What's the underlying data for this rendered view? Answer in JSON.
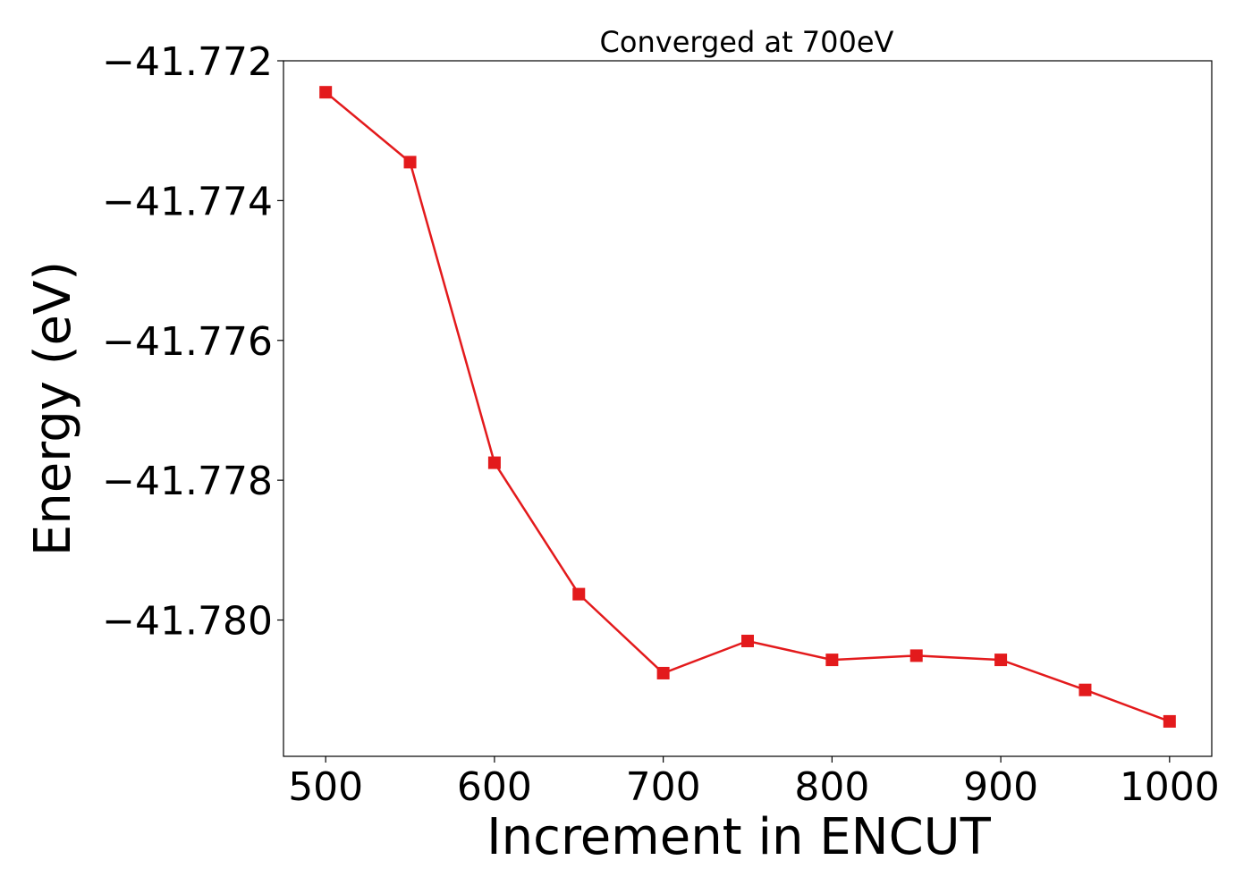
{
  "chart_data": {
    "type": "line",
    "title": "Converged at 700eV",
    "xlabel": "Increment in ENCUT",
    "ylabel": "Energy (eV)",
    "x": [
      500,
      550,
      600,
      650,
      700,
      750,
      800,
      850,
      900,
      950,
      1000
    ],
    "series": [
      {
        "values": [
          -41.77245,
          -41.77345,
          -41.77775,
          -41.77963,
          -41.78076,
          -41.7803,
          -41.78057,
          -41.78051,
          -41.78057,
          -41.781,
          -41.78145
        ],
        "color": "#e31a1c",
        "marker": "square"
      }
    ],
    "xlim": [
      475,
      1025
    ],
    "ylim": [
      -41.78195,
      -41.772
    ],
    "xticks": [
      500,
      600,
      700,
      800,
      900,
      1000
    ],
    "xtick_labels": [
      "500",
      "600",
      "700",
      "800",
      "900",
      "1000"
    ],
    "yticks": [
      -41.772,
      -41.774,
      -41.776,
      -41.778,
      -41.78
    ],
    "ytick_labels": [
      "−41.772",
      "−41.774",
      "−41.776",
      "−41.778",
      "−41.780"
    ],
    "grid": false
  }
}
